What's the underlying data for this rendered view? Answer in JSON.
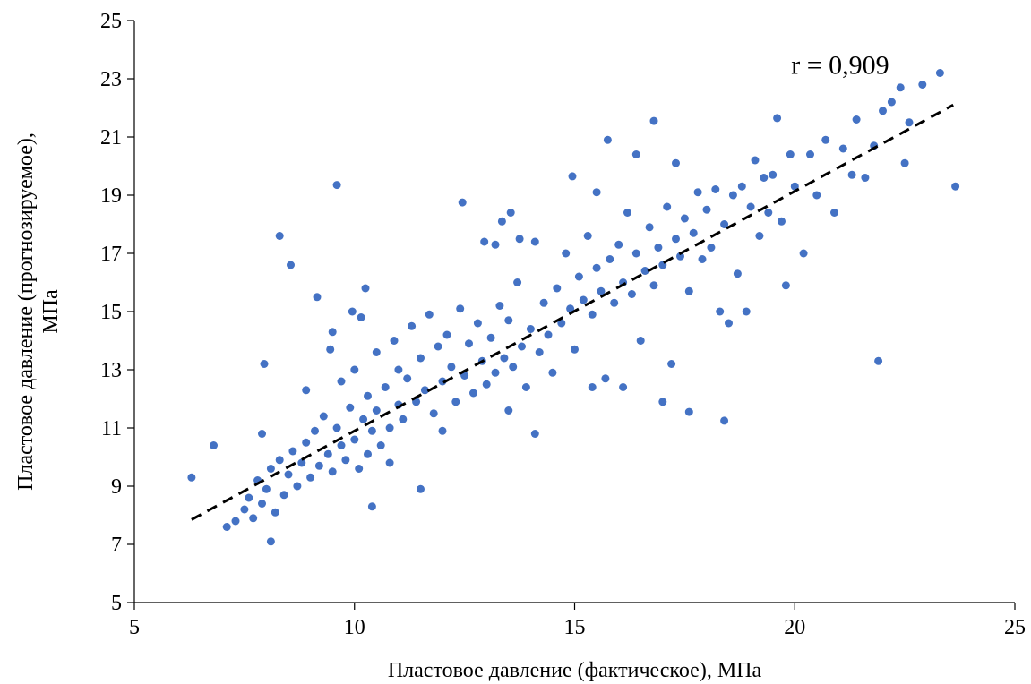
{
  "chart_data": {
    "type": "scatter",
    "title": "",
    "xlabel": "Пластовое давление (фактическое), МПа",
    "ylabel_lines": [
      "Пластовое давление (прогнозируемое),",
      "МПа"
    ],
    "xlim": [
      5,
      25
    ],
    "ylim": [
      5,
      25
    ],
    "xticks": [
      "5",
      "10",
      "15",
      "20",
      "25"
    ],
    "yticks": [
      "5",
      "7",
      "9",
      "11",
      "13",
      "15",
      "17",
      "19",
      "21",
      "23",
      "25"
    ],
    "grid": false,
    "legend": "none",
    "marker_color": "#4472C4",
    "trendline": {
      "style": "dashed",
      "color": "#000000",
      "x": [
        6.3,
        23.6
      ],
      "y": [
        7.85,
        22.1
      ]
    },
    "annotation": {
      "text": "r = 0,909",
      "x": 20,
      "y": 23.3
    },
    "series": [
      {
        "values": [
          [
            6.3,
            9.3
          ],
          [
            6.8,
            10.4
          ],
          [
            7.1,
            7.6
          ],
          [
            7.3,
            7.8
          ],
          [
            7.5,
            8.2
          ],
          [
            7.6,
            8.6
          ],
          [
            7.7,
            7.9
          ],
          [
            7.8,
            9.2
          ],
          [
            7.9,
            8.4
          ],
          [
            7.9,
            10.8
          ],
          [
            7.95,
            13.2
          ],
          [
            8.0,
            8.9
          ],
          [
            8.1,
            7.1
          ],
          [
            8.1,
            9.6
          ],
          [
            8.2,
            8.1
          ],
          [
            8.3,
            9.9
          ],
          [
            8.3,
            17.6
          ],
          [
            8.4,
            8.7
          ],
          [
            8.5,
            9.4
          ],
          [
            8.55,
            16.6
          ],
          [
            8.6,
            10.2
          ],
          [
            8.7,
            9.0
          ],
          [
            8.8,
            9.8
          ],
          [
            8.9,
            10.5
          ],
          [
            8.9,
            12.3
          ],
          [
            9.0,
            9.3
          ],
          [
            9.1,
            10.9
          ],
          [
            9.15,
            15.5
          ],
          [
            9.2,
            9.7
          ],
          [
            9.3,
            11.4
          ],
          [
            9.4,
            10.1
          ],
          [
            9.45,
            13.7
          ],
          [
            9.5,
            9.5
          ],
          [
            9.5,
            14.3
          ],
          [
            9.6,
            19.35
          ],
          [
            9.6,
            11.0
          ],
          [
            9.7,
            10.4
          ],
          [
            9.7,
            12.6
          ],
          [
            9.8,
            9.9
          ],
          [
            9.9,
            11.7
          ],
          [
            9.95,
            15.0
          ],
          [
            10.0,
            10.6
          ],
          [
            10.0,
            13.0
          ],
          [
            10.1,
            9.6
          ],
          [
            10.15,
            14.8
          ],
          [
            10.2,
            11.3
          ],
          [
            10.25,
            15.8
          ],
          [
            10.3,
            10.1
          ],
          [
            10.3,
            12.1
          ],
          [
            10.4,
            10.9
          ],
          [
            10.4,
            8.3
          ],
          [
            10.5,
            13.6
          ],
          [
            10.5,
            11.6
          ],
          [
            10.6,
            10.4
          ],
          [
            10.7,
            12.4
          ],
          [
            10.8,
            11.0
          ],
          [
            10.8,
            9.8
          ],
          [
            10.9,
            14.0
          ],
          [
            11.0,
            11.8
          ],
          [
            11.0,
            13.0
          ],
          [
            11.1,
            11.3
          ],
          [
            11.2,
            12.7
          ],
          [
            11.3,
            14.5
          ],
          [
            11.4,
            11.9
          ],
          [
            11.5,
            8.9
          ],
          [
            11.5,
            13.4
          ],
          [
            11.6,
            12.3
          ],
          [
            11.7,
            14.9
          ],
          [
            11.8,
            11.5
          ],
          [
            11.9,
            13.8
          ],
          [
            12.0,
            12.6
          ],
          [
            12.0,
            10.9
          ],
          [
            12.1,
            14.2
          ],
          [
            12.2,
            13.1
          ],
          [
            12.3,
            11.9
          ],
          [
            12.4,
            15.1
          ],
          [
            12.45,
            18.75
          ],
          [
            12.5,
            12.8
          ],
          [
            12.6,
            13.9
          ],
          [
            12.7,
            12.2
          ],
          [
            12.8,
            14.6
          ],
          [
            12.9,
            13.3
          ],
          [
            12.95,
            17.4
          ],
          [
            13.0,
            12.5
          ],
          [
            13.1,
            14.1
          ],
          [
            13.2,
            12.9
          ],
          [
            13.2,
            17.3
          ],
          [
            13.3,
            15.2
          ],
          [
            13.35,
            18.1
          ],
          [
            13.4,
            13.4
          ],
          [
            13.5,
            11.6
          ],
          [
            13.5,
            14.7
          ],
          [
            13.55,
            18.4
          ],
          [
            13.6,
            13.1
          ],
          [
            13.7,
            16.0
          ],
          [
            13.75,
            17.5
          ],
          [
            13.8,
            13.8
          ],
          [
            13.9,
            12.4
          ],
          [
            14.0,
            14.4
          ],
          [
            14.1,
            17.4
          ],
          [
            14.1,
            10.8
          ],
          [
            14.2,
            13.6
          ],
          [
            14.3,
            15.3
          ],
          [
            14.4,
            14.2
          ],
          [
            14.5,
            12.9
          ],
          [
            14.6,
            15.8
          ],
          [
            14.7,
            14.6
          ],
          [
            14.8,
            17.0
          ],
          [
            14.9,
            15.1
          ],
          [
            14.95,
            19.65
          ],
          [
            15.0,
            13.7
          ],
          [
            15.1,
            16.2
          ],
          [
            15.2,
            15.4
          ],
          [
            15.3,
            17.6
          ],
          [
            15.4,
            14.9
          ],
          [
            15.4,
            12.4
          ],
          [
            15.5,
            16.5
          ],
          [
            15.5,
            19.1
          ],
          [
            15.6,
            15.7
          ],
          [
            15.7,
            12.7
          ],
          [
            15.75,
            20.9
          ],
          [
            15.8,
            16.8
          ],
          [
            15.9,
            15.3
          ],
          [
            16.0,
            17.3
          ],
          [
            16.1,
            12.4
          ],
          [
            16.1,
            16.0
          ],
          [
            16.2,
            18.4
          ],
          [
            16.3,
            15.6
          ],
          [
            16.4,
            17.0
          ],
          [
            16.4,
            20.4
          ],
          [
            16.5,
            14.0
          ],
          [
            16.6,
            16.4
          ],
          [
            16.7,
            17.9
          ],
          [
            16.8,
            15.9
          ],
          [
            16.8,
            21.55
          ],
          [
            16.9,
            17.2
          ],
          [
            17.0,
            16.6
          ],
          [
            17.0,
            11.9
          ],
          [
            17.1,
            18.6
          ],
          [
            17.2,
            13.2
          ],
          [
            17.3,
            17.5
          ],
          [
            17.3,
            20.1
          ],
          [
            17.4,
            16.9
          ],
          [
            17.5,
            18.2
          ],
          [
            17.6,
            15.7
          ],
          [
            17.6,
            11.55
          ],
          [
            17.7,
            17.7
          ],
          [
            17.8,
            19.1
          ],
          [
            17.9,
            16.8
          ],
          [
            18.0,
            18.5
          ],
          [
            18.1,
            17.2
          ],
          [
            18.2,
            19.2
          ],
          [
            18.3,
            15.0
          ],
          [
            18.4,
            11.25
          ],
          [
            18.4,
            18.0
          ],
          [
            18.5,
            14.6
          ],
          [
            18.6,
            19.0
          ],
          [
            18.7,
            16.3
          ],
          [
            18.8,
            19.3
          ],
          [
            18.9,
            15.0
          ],
          [
            19.0,
            18.6
          ],
          [
            19.1,
            20.2
          ],
          [
            19.2,
            17.6
          ],
          [
            19.3,
            19.6
          ],
          [
            19.4,
            18.4
          ],
          [
            19.5,
            19.7
          ],
          [
            19.6,
            21.65
          ],
          [
            19.7,
            18.1
          ],
          [
            19.8,
            15.9
          ],
          [
            19.9,
            20.4
          ],
          [
            20.0,
            19.3
          ],
          [
            20.2,
            17.0
          ],
          [
            20.35,
            20.4
          ],
          [
            20.5,
            19.0
          ],
          [
            20.7,
            20.9
          ],
          [
            20.9,
            18.4
          ],
          [
            21.1,
            20.6
          ],
          [
            21.3,
            19.7
          ],
          [
            21.4,
            21.6
          ],
          [
            21.6,
            19.6
          ],
          [
            21.8,
            20.7
          ],
          [
            21.9,
            13.3
          ],
          [
            22.0,
            21.9
          ],
          [
            22.2,
            22.2
          ],
          [
            22.4,
            22.7
          ],
          [
            22.5,
            20.1
          ],
          [
            22.6,
            21.5
          ],
          [
            22.9,
            22.8
          ],
          [
            23.3,
            23.2
          ],
          [
            23.65,
            19.3
          ]
        ]
      }
    ]
  }
}
